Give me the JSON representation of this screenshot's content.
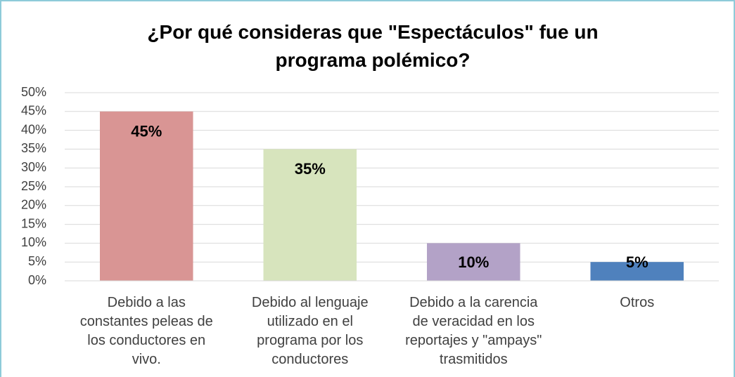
{
  "chart_data": {
    "type": "bar",
    "title": "¿Por qué consideras que \"Espectáculos\" fue un programa polémico?",
    "categories": [
      "Debido a las constantes peleas de los conductores en vivo.",
      "Debido al lenguaje utilizado en el programa por los conductores",
      "Debido a la carencia de veracidad en los reportajes y \"ampays\" trasmitidos",
      "Otros"
    ],
    "values": [
      45,
      35,
      10,
      5
    ],
    "value_labels": [
      "45%",
      "35%",
      "10%",
      "5%"
    ],
    "colors": [
      "#d99594",
      "#d7e4bd",
      "#b3a2c7",
      "#4f81bd"
    ],
    "ylim": [
      0,
      50
    ],
    "yticks": [
      {
        "value": 0,
        "label": "0%"
      },
      {
        "value": 5,
        "label": "5%"
      },
      {
        "value": 10,
        "label": "10%"
      },
      {
        "value": 15,
        "label": "15%"
      },
      {
        "value": 20,
        "label": "20%"
      },
      {
        "value": 25,
        "label": "25%"
      },
      {
        "value": 30,
        "label": "30%"
      },
      {
        "value": 35,
        "label": "35%"
      },
      {
        "value": 40,
        "label": "40%"
      },
      {
        "value": 45,
        "label": "45%"
      },
      {
        "value": 50,
        "label": "50%"
      }
    ],
    "grid": true
  }
}
